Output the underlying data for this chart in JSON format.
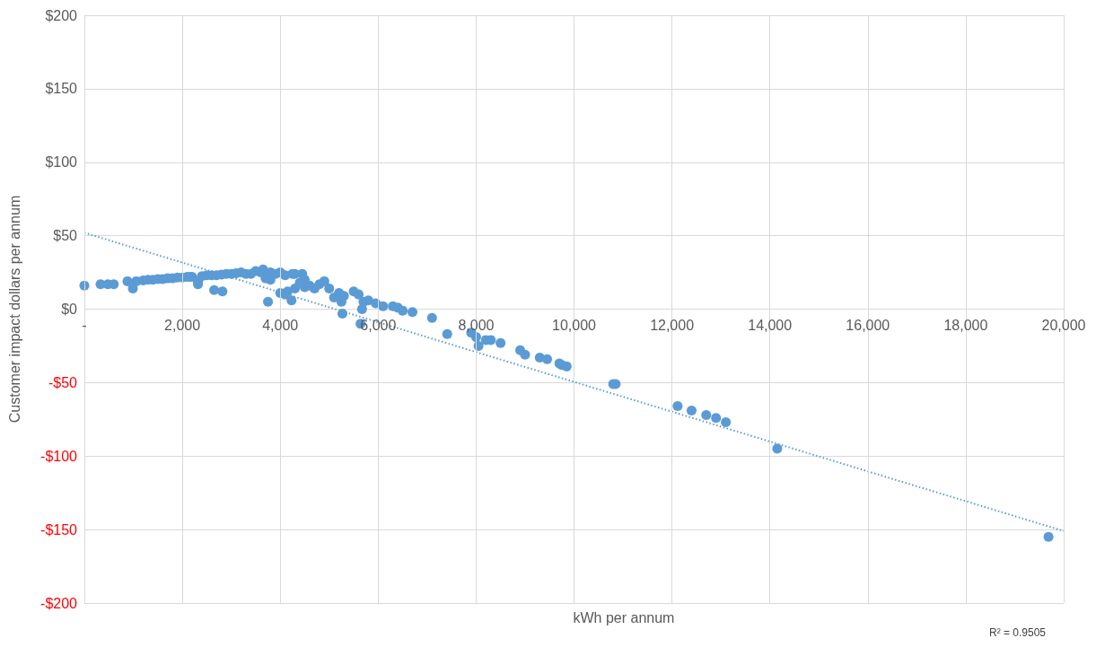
{
  "chart_data": {
    "type": "scatter",
    "xlabel": "kWh per annum",
    "ylabel": "Customer impact dollars per annum",
    "annotations": [
      "R² = 0.9505"
    ],
    "series": [
      {
        "color": "#5b9bd5",
        "marker": "circle",
        "x": [
          0,
          330,
          480,
          600,
          880,
          990,
          1060,
          1200,
          1300,
          1400,
          1500,
          1600,
          1700,
          1800,
          1900,
          2000,
          2100,
          2160,
          2200,
          2320,
          2320,
          2400,
          2500,
          2600,
          2650,
          2700,
          2800,
          2820,
          2900,
          3000,
          3100,
          3200,
          3300,
          3400,
          3500,
          3600,
          3650,
          3700,
          3750,
          3800,
          3800,
          3900,
          4000,
          4000,
          4100,
          4100,
          4150,
          4230,
          4250,
          4300,
          4300,
          4400,
          4450,
          4500,
          4500,
          4600,
          4700,
          4800,
          4900,
          5000,
          5100,
          5200,
          5250,
          5270,
          5300,
          5500,
          5600,
          5640,
          5670,
          5700,
          5800,
          5950,
          6100,
          6300,
          6400,
          6500,
          6700,
          7100,
          7410,
          7900,
          8000,
          8050,
          8200,
          8300,
          8500,
          8900,
          9000,
          9300,
          9450,
          9700,
          9750,
          9850,
          10800,
          10850,
          12115,
          12400,
          12700,
          12900,
          13100,
          14150,
          19690
        ],
        "values": [
          16,
          17,
          17,
          17,
          19,
          14,
          19,
          19.5,
          20,
          20,
          20.5,
          20.5,
          21,
          21,
          21.5,
          21.5,
          22,
          22,
          22,
          17,
          19,
          22.5,
          23,
          23,
          13,
          23,
          23.5,
          12,
          24,
          24,
          24.5,
          25,
          24,
          24,
          26,
          25,
          27,
          21,
          5,
          25,
          20,
          24,
          25,
          11,
          23,
          10,
          12,
          6,
          24,
          14,
          24,
          18,
          24,
          15,
          20,
          16,
          14,
          17,
          19,
          14,
          8,
          11,
          5,
          -3,
          9,
          12,
          10,
          -10,
          0,
          5,
          6,
          4,
          2,
          2,
          1,
          -1,
          -2,
          -6,
          -17,
          -16,
          -19,
          -25,
          -21,
          -21,
          -23,
          -28,
          -31,
          -33,
          -34,
          -37,
          -38,
          -39,
          -51,
          -51,
          -66,
          -69,
          -72,
          -74,
          -77,
          -95,
          -155
        ]
      },
      {
        "type": "line",
        "color": "#5b9bd5",
        "marker": "none",
        "line_style": "dotted",
        "x": [
          0,
          20000
        ],
        "values": [
          52,
          -151
        ]
      }
    ],
    "xlim": [
      0,
      20000
    ],
    "xticks": [
      {
        "value": 0,
        "label": "-"
      },
      {
        "value": 2000,
        "label": "2,000"
      },
      {
        "value": 4000,
        "label": "4,000"
      },
      {
        "value": 6000,
        "label": "6,000"
      },
      {
        "value": 8000,
        "label": "8,000"
      },
      {
        "value": 10000,
        "label": "10,000"
      },
      {
        "value": 12000,
        "label": "12,000"
      },
      {
        "value": 14000,
        "label": "14,000"
      },
      {
        "value": 16000,
        "label": "16,000"
      },
      {
        "value": 18000,
        "label": "18,000"
      },
      {
        "value": 20000,
        "label": "20,000"
      }
    ],
    "ylim": [
      -200,
      200
    ],
    "yticks": [
      {
        "value": -200,
        "label": "-$200"
      },
      {
        "value": -150,
        "label": "-$150"
      },
      {
        "value": -100,
        "label": "-$100"
      },
      {
        "value": -50,
        "label": "-$50"
      },
      {
        "value": 0,
        "label": "$0"
      },
      {
        "value": 50,
        "label": "$50"
      },
      {
        "value": 100,
        "label": "$100"
      },
      {
        "value": 150,
        "label": "$150"
      },
      {
        "value": 200,
        "label": "$200"
      }
    ],
    "grid": true
  }
}
